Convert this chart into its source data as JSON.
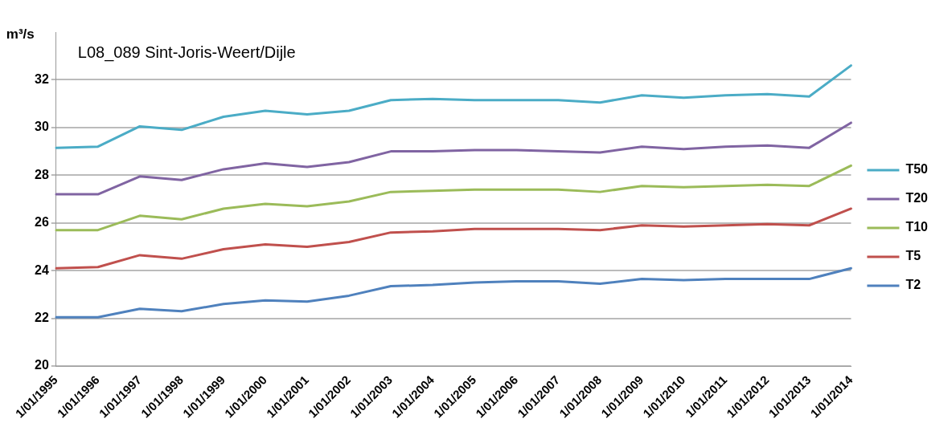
{
  "chart_data": {
    "type": "line",
    "title": "L08_089 Sint-Joris-Weert/Dijle",
    "ylabel": "m³/s",
    "categories": [
      "1/01/1995",
      "1/01/1996",
      "1/01/1997",
      "1/01/1998",
      "1/01/1999",
      "1/01/2000",
      "1/01/2001",
      "1/01/2002",
      "1/01/2003",
      "1/01/2004",
      "1/01/2005",
      "1/01/2006",
      "1/01/2007",
      "1/01/2008",
      "1/01/2009",
      "1/01/2010",
      "1/01/2011",
      "1/01/2012",
      "1/01/2013",
      "1/01/2014"
    ],
    "series": [
      {
        "name": "T50",
        "color": "#4bacc6",
        "values": [
          29.15,
          29.2,
          30.05,
          29.9,
          30.45,
          30.7,
          30.55,
          30.7,
          31.15,
          31.2,
          31.15,
          31.15,
          31.15,
          31.05,
          31.35,
          31.25,
          31.35,
          31.4,
          31.3,
          32.6
        ]
      },
      {
        "name": "T20",
        "color": "#8064a2",
        "values": [
          27.2,
          27.2,
          27.95,
          27.8,
          28.25,
          28.5,
          28.35,
          28.55,
          29.0,
          29.0,
          29.05,
          29.05,
          29.0,
          28.95,
          29.2,
          29.1,
          29.2,
          29.25,
          29.15,
          30.2
        ]
      },
      {
        "name": "T10",
        "color": "#9bbb59",
        "values": [
          25.7,
          25.7,
          26.3,
          26.15,
          26.6,
          26.8,
          26.7,
          26.9,
          27.3,
          27.35,
          27.4,
          27.4,
          27.4,
          27.3,
          27.55,
          27.5,
          27.55,
          27.6,
          27.55,
          28.4
        ]
      },
      {
        "name": "T5",
        "color": "#c0504d",
        "values": [
          24.1,
          24.15,
          24.65,
          24.5,
          24.9,
          25.1,
          25.0,
          25.2,
          25.6,
          25.65,
          25.75,
          25.75,
          25.75,
          25.7,
          25.9,
          25.85,
          25.9,
          25.95,
          25.9,
          26.6
        ]
      },
      {
        "name": "T2",
        "color": "#4f81bd",
        "values": [
          22.05,
          22.05,
          22.4,
          22.3,
          22.6,
          22.75,
          22.7,
          22.95,
          23.35,
          23.4,
          23.5,
          23.55,
          23.55,
          23.45,
          23.65,
          23.6,
          23.65,
          23.65,
          23.65,
          24.1
        ]
      }
    ],
    "ylim": [
      20,
      34
    ],
    "yticks": [
      20,
      22,
      24,
      26,
      28,
      30,
      32
    ],
    "grid": "y",
    "legend": "right",
    "marker": "none",
    "line_style": "solid"
  }
}
